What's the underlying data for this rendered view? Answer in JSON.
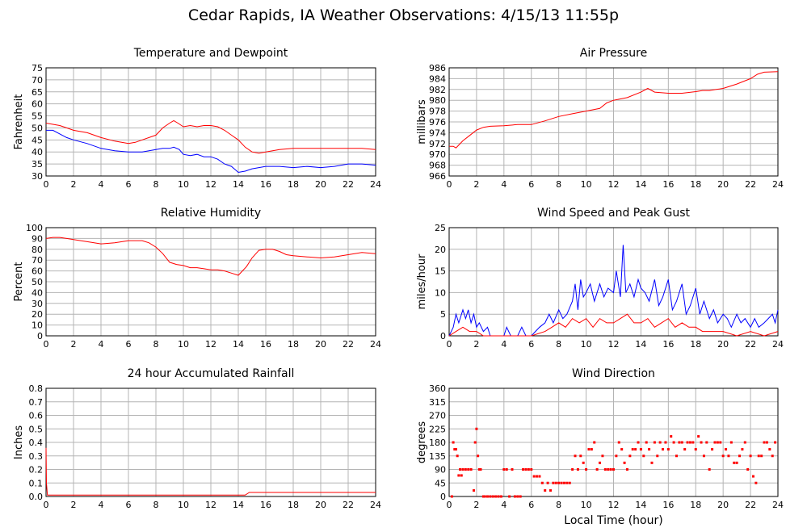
{
  "page": {
    "title": "Cedar Rapids, IA Weather Observations: 4/15/13 11:55p"
  },
  "x_axis_label": "Local Time (hour)",
  "chart_data": [
    {
      "id": "temp",
      "type": "line",
      "title": "Temperature and Dewpoint",
      "ylabel": "Fahrenheit",
      "xlabel": "",
      "xlim": [
        0,
        24
      ],
      "ylim": [
        30,
        75
      ],
      "xticks": [
        0,
        2,
        4,
        6,
        8,
        10,
        12,
        14,
        16,
        18,
        20,
        22,
        24
      ],
      "yticks": [
        30,
        35,
        40,
        45,
        50,
        55,
        60,
        65,
        70,
        75
      ],
      "grid": true,
      "series": [
        {
          "color": "#ff0000",
          "x": [
            0,
            0.5,
            1,
            1.5,
            2,
            3,
            4,
            5,
            5.5,
            6,
            6.5,
            7,
            8,
            8.5,
            9,
            9.3,
            9.6,
            10,
            10.5,
            11,
            11.5,
            12,
            12.5,
            13,
            13.5,
            14,
            14.5,
            15,
            15.5,
            16,
            17,
            18,
            19,
            20,
            21,
            22,
            23,
            24
          ],
          "y": [
            52,
            51.5,
            51,
            50,
            49,
            48,
            46,
            44.5,
            44,
            43.5,
            44,
            45,
            47,
            50,
            52,
            53,
            52,
            50.5,
            51,
            50.5,
            51,
            51,
            50.5,
            49,
            47,
            45,
            42,
            40,
            39.5,
            40,
            41,
            41.5,
            41.5,
            41.5,
            41.5,
            41.5,
            41.5,
            41
          ]
        },
        {
          "color": "#0000ff",
          "x": [
            0,
            0.5,
            1,
            1.5,
            2,
            3,
            4,
            5,
            6,
            7,
            8,
            8.5,
            9,
            9.3,
            9.7,
            10,
            10.5,
            11,
            11.5,
            12,
            12.5,
            13,
            13.5,
            14,
            14.5,
            15,
            15.5,
            16,
            17,
            18,
            19,
            20,
            21,
            22,
            22.5,
            23,
            24
          ],
          "y": [
            49,
            49,
            47.5,
            46,
            45,
            43.5,
            41.5,
            40.5,
            40,
            40,
            41,
            41.5,
            41.5,
            42,
            41,
            39,
            38.5,
            39,
            38,
            38,
            37,
            35,
            34,
            31.5,
            32,
            33,
            33.5,
            34,
            34,
            33.5,
            34,
            33.5,
            34,
            35,
            35,
            35,
            34.5
          ]
        }
      ]
    },
    {
      "id": "pressure",
      "type": "line",
      "title": "Air Pressure",
      "ylabel": "millibars",
      "xlabel": "",
      "xlim": [
        0,
        24
      ],
      "ylim": [
        966,
        986
      ],
      "xticks": [
        0,
        2,
        4,
        6,
        8,
        10,
        12,
        14,
        16,
        18,
        20,
        22,
        24
      ],
      "yticks": [
        966,
        968,
        970,
        972,
        974,
        976,
        978,
        980,
        982,
        984,
        986
      ],
      "grid": true,
      "series": [
        {
          "color": "#ff0000",
          "x": [
            0,
            0.3,
            0.5,
            1,
            1.5,
            2,
            2.5,
            3,
            4,
            5,
            6,
            7,
            8,
            9,
            10,
            11,
            11.5,
            12,
            13,
            14,
            14.5,
            15,
            16,
            17,
            18,
            18.5,
            19,
            20,
            21,
            22,
            22.5,
            23,
            24
          ],
          "y": [
            971.5,
            971.5,
            971.2,
            972.5,
            973.5,
            974.5,
            975,
            975.2,
            975.3,
            975.5,
            975.5,
            976.2,
            977,
            977.5,
            978,
            978.5,
            979.5,
            980,
            980.5,
            981.5,
            982.2,
            981.5,
            981.3,
            981.3,
            981.6,
            981.8,
            981.8,
            982.2,
            983,
            984,
            984.8,
            985.2,
            985.3
          ]
        }
      ]
    },
    {
      "id": "humidity",
      "type": "line",
      "title": "Relative Humidity",
      "ylabel": "Percent",
      "xlabel": "",
      "xlim": [
        0,
        24
      ],
      "ylim": [
        0,
        100
      ],
      "xticks": [
        0,
        2,
        4,
        6,
        8,
        10,
        12,
        14,
        16,
        18,
        20,
        22,
        24
      ],
      "yticks": [
        0,
        10,
        20,
        30,
        40,
        50,
        60,
        70,
        80,
        90,
        100
      ],
      "grid": true,
      "series": [
        {
          "color": "#ff0000",
          "x": [
            0,
            0.5,
            1,
            1.5,
            2,
            3,
            4,
            5,
            6,
            6.5,
            7,
            7.5,
            8,
            8.5,
            9,
            9.5,
            10,
            10.5,
            11,
            11.5,
            12,
            12.5,
            13,
            13.5,
            14,
            14.3,
            14.6,
            15,
            15.5,
            16,
            16.5,
            17,
            17.5,
            18,
            19,
            20,
            21,
            22,
            23,
            24
          ],
          "y": [
            90,
            91,
            91,
            90,
            89,
            87,
            85,
            86,
            88,
            88,
            88,
            86,
            82,
            76,
            68,
            66,
            65,
            63,
            63,
            62,
            61,
            61,
            60,
            58,
            56,
            60,
            64,
            72,
            79,
            80,
            80,
            78,
            75,
            74,
            73,
            72,
            73,
            75,
            77,
            76
          ]
        }
      ]
    },
    {
      "id": "wind",
      "type": "line",
      "title": "Wind Speed and Peak Gust",
      "ylabel": "miles/hour",
      "xlabel": "",
      "xlim": [
        0,
        24
      ],
      "ylim": [
        0,
        25
      ],
      "xticks": [
        0,
        2,
        4,
        6,
        8,
        10,
        12,
        14,
        16,
        18,
        20,
        22,
        24
      ],
      "yticks": [
        0,
        5,
        10,
        15,
        20,
        25
      ],
      "grid": true,
      "series": [
        {
          "color": "#0000ff",
          "x": [
            0,
            0.3,
            0.5,
            0.7,
            1,
            1.2,
            1.4,
            1.6,
            1.8,
            2,
            2.2,
            2.5,
            2.8,
            3,
            3.5,
            4,
            4.2,
            4.5,
            5,
            5.3,
            5.6,
            6,
            6.3,
            6.6,
            7,
            7.3,
            7.6,
            8,
            8.3,
            8.6,
            9,
            9.2,
            9.4,
            9.6,
            9.8,
            10,
            10.3,
            10.6,
            11,
            11.3,
            11.6,
            12,
            12.2,
            12.5,
            12.7,
            12.9,
            13.2,
            13.5,
            13.8,
            14,
            14.3,
            14.6,
            15,
            15.3,
            15.6,
            16,
            16.3,
            16.6,
            17,
            17.3,
            17.6,
            18,
            18.3,
            18.6,
            19,
            19.3,
            19.6,
            20,
            20.3,
            20.6,
            21,
            21.3,
            21.6,
            22,
            22.3,
            22.6,
            23,
            23.3,
            23.6,
            23.8,
            24
          ],
          "y": [
            0,
            2,
            5,
            3,
            6,
            4,
            6,
            3,
            5,
            2,
            3,
            1,
            2,
            0,
            0,
            0,
            2,
            0,
            0,
            2,
            0,
            0,
            1,
            2,
            3,
            5,
            3,
            6,
            4,
            5,
            8,
            12,
            6,
            13,
            9,
            10,
            12,
            8,
            12,
            9,
            11,
            10,
            15,
            9,
            21,
            10,
            12,
            9,
            13,
            11,
            10,
            8,
            13,
            7,
            9,
            13,
            6,
            8,
            12,
            5,
            7,
            11,
            5,
            8,
            4,
            6,
            3,
            5,
            4,
            2,
            5,
            3,
            4,
            2,
            4,
            2,
            3,
            4,
            5,
            3,
            6
          ]
        },
        {
          "color": "#ff0000",
          "x": [
            0,
            0.5,
            1,
            1.5,
            2,
            2.5,
            3,
            4,
            5,
            6,
            7,
            7.5,
            8,
            8.5,
            9,
            9.5,
            10,
            10.5,
            11,
            11.5,
            12,
            12.5,
            13,
            13.5,
            14,
            14.5,
            15,
            15.5,
            16,
            16.5,
            17,
            17.5,
            18,
            18.5,
            19,
            20,
            21,
            22,
            23,
            24
          ],
          "y": [
            0,
            1,
            2,
            1,
            1,
            0,
            0,
            0,
            0,
            0,
            1,
            2,
            3,
            2,
            4,
            3,
            4,
            2,
            4,
            3,
            3,
            4,
            5,
            3,
            3,
            4,
            2,
            3,
            4,
            2,
            3,
            2,
            2,
            1,
            1,
            1,
            0,
            1,
            0,
            1
          ]
        }
      ]
    },
    {
      "id": "rain",
      "type": "line",
      "title": "24 hour Accumulated Rainfall",
      "ylabel": "Inches",
      "xlabel": "",
      "xlim": [
        0,
        24
      ],
      "ylim": [
        0,
        0.8
      ],
      "xticks": [
        0,
        2,
        4,
        6,
        8,
        10,
        12,
        14,
        16,
        18,
        20,
        22,
        24
      ],
      "yticks": [
        0.0,
        0.1,
        0.2,
        0.3,
        0.4,
        0.5,
        0.6,
        0.7,
        0.8
      ],
      "grid": true,
      "series": [
        {
          "color": "#ff0000",
          "x": [
            0,
            0.03,
            0.1,
            0.2,
            14.5,
            14.8,
            24
          ],
          "y": [
            0.36,
            0.1,
            0.01,
            0.01,
            0.01,
            0.03,
            0.03
          ]
        }
      ]
    },
    {
      "id": "direction",
      "type": "scatter",
      "title": "Wind Direction",
      "ylabel": "degrees",
      "xlabel": "Local Time (hour)",
      "xlim": [
        0,
        24
      ],
      "ylim": [
        0,
        360
      ],
      "xticks": [
        0,
        2,
        4,
        6,
        8,
        10,
        12,
        14,
        16,
        18,
        20,
        22,
        24
      ],
      "yticks": [
        0,
        45,
        90,
        135,
        180,
        225,
        270,
        315,
        360
      ],
      "grid": true,
      "series": [
        {
          "color": "#ff0000",
          "x": [
            0.2,
            0.3,
            0.4,
            0.5,
            0.6,
            0.7,
            0.8,
            0.9,
            1.0,
            1.2,
            1.4,
            1.6,
            1.8,
            1.9,
            2.0,
            2.1,
            2.2,
            2.3,
            2.5,
            2.6,
            2.8,
            3.0,
            3.2,
            3.4,
            3.6,
            3.8,
            4.0,
            4.2,
            4.4,
            4.6,
            4.8,
            5.0,
            5.2,
            5.4,
            5.6,
            5.8,
            6.0,
            6.2,
            6.4,
            6.6,
            6.8,
            7.0,
            7.2,
            7.4,
            7.6,
            7.8,
            8.0,
            8.2,
            8.4,
            8.6,
            8.8,
            9.0,
            9.2,
            9.4,
            9.6,
            9.8,
            10.0,
            10.2,
            10.4,
            10.6,
            10.8,
            11.0,
            11.2,
            11.4,
            11.6,
            11.8,
            12.0,
            12.2,
            12.4,
            12.6,
            12.8,
            13.0,
            13.2,
            13.4,
            13.6,
            13.8,
            14.0,
            14.2,
            14.4,
            14.6,
            14.8,
            15.0,
            15.2,
            15.4,
            15.6,
            15.8,
            16.0,
            16.2,
            16.4,
            16.6,
            16.8,
            17.0,
            17.2,
            17.4,
            17.6,
            17.8,
            18.0,
            18.2,
            18.4,
            18.6,
            18.8,
            19.0,
            19.2,
            19.4,
            19.6,
            19.8,
            20.0,
            20.2,
            20.4,
            20.6,
            20.8,
            21.0,
            21.2,
            21.4,
            21.6,
            21.8,
            22.0,
            22.2,
            22.4,
            22.6,
            22.8,
            23.0,
            23.2,
            23.4,
            23.6,
            23.8
          ],
          "y": [
            0,
            180,
            157,
            157,
            135,
            70,
            90,
            70,
            90,
            90,
            90,
            90,
            20,
            180,
            225,
            135,
            90,
            90,
            0,
            0,
            0,
            0,
            0,
            0,
            0,
            0,
            90,
            90,
            0,
            90,
            0,
            0,
            0,
            90,
            90,
            90,
            90,
            67,
            67,
            67,
            45,
            20,
            45,
            20,
            45,
            45,
            45,
            45,
            45,
            45,
            45,
            90,
            135,
            90,
            135,
            112,
            90,
            157,
            157,
            180,
            90,
            112,
            135,
            90,
            90,
            90,
            90,
            135,
            180,
            157,
            112,
            90,
            135,
            157,
            157,
            180,
            157,
            135,
            180,
            157,
            112,
            180,
            135,
            180,
            157,
            180,
            157,
            200,
            180,
            135,
            180,
            180,
            157,
            180,
            180,
            180,
            157,
            200,
            180,
            135,
            180,
            90,
            157,
            180,
            180,
            180,
            135,
            157,
            135,
            180,
            112,
            112,
            135,
            157,
            180,
            90,
            135,
            67,
            45,
            135,
            135,
            180,
            180,
            157,
            135,
            180
          ]
        }
      ]
    }
  ]
}
